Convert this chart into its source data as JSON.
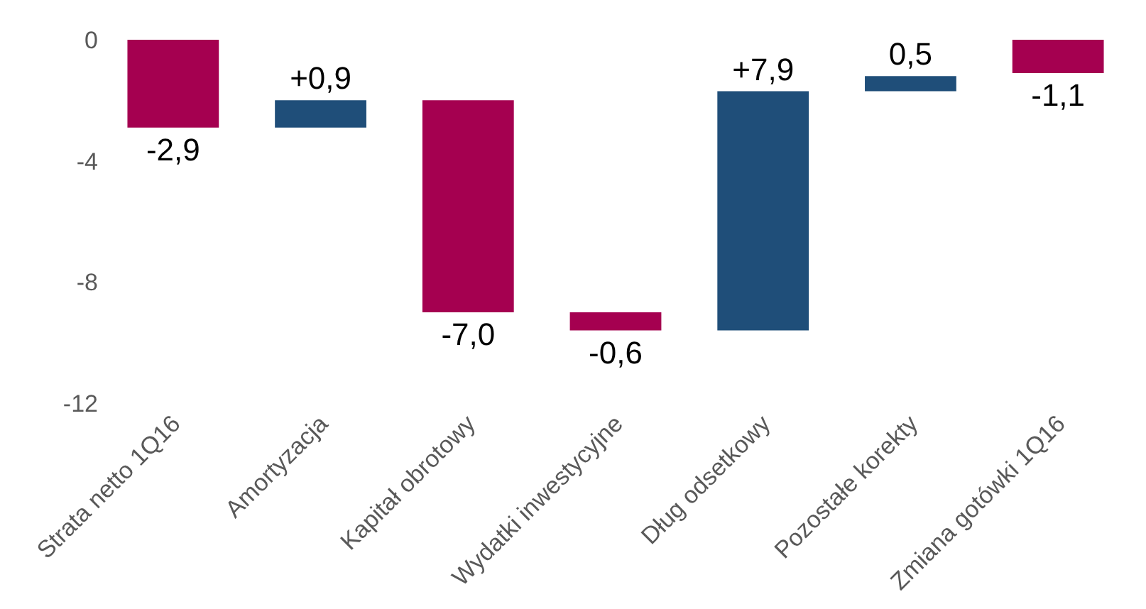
{
  "chart_data": {
    "type": "bar",
    "categories": [
      "Strata netto 1Q16",
      "Amortyzacja",
      "Kapitał obrotowy",
      "Wydatki inwestycyjne",
      "Dług odsetkowy",
      "Pozostałe korekty",
      "Zmiana gotówki 1Q16"
    ],
    "base": [
      0,
      -2.9,
      -2.0,
      -9.0,
      -9.6,
      -1.7,
      0
    ],
    "values": [
      -2.9,
      0.9,
      -7.0,
      -0.6,
      7.9,
      0.5,
      -1.1
    ],
    "colors": [
      "#a50050",
      "#1f4e79",
      "#a50050",
      "#a50050",
      "#1f4e79",
      "#1f4e79",
      "#a50050"
    ],
    "value_labels": [
      "-2,9",
      "+0,9",
      "-7,0",
      "-0,6",
      "+7,9",
      "0,5",
      "-1,1"
    ],
    "ylim": [
      -12,
      0
    ],
    "yticks": [
      0,
      -4,
      -8,
      -12
    ]
  }
}
